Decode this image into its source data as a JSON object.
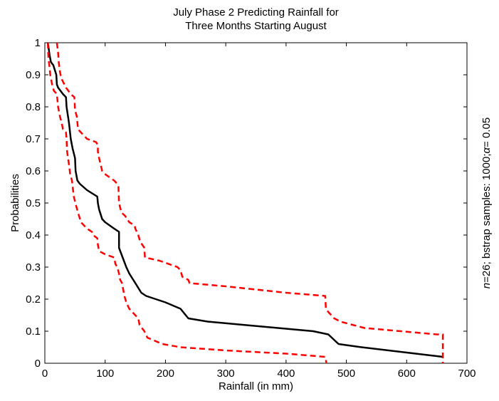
{
  "chart_data": {
    "type": "line",
    "title": [
      "July Phase 2 Predicting Rainfall for",
      "Three Months Starting August"
    ],
    "xlabel": "Rainfall (in mm)",
    "ylabel": "Probabilities",
    "side_note": {
      "n": "n",
      "rest": "=26; bstrap samples: 1000;",
      "alpha": "α",
      "alpha_val": "= 0.05"
    },
    "xlim": [
      0,
      700
    ],
    "ylim": [
      0,
      1
    ],
    "xticks": [
      0,
      100,
      200,
      300,
      400,
      500,
      600,
      700
    ],
    "yticks": [
      0,
      0.1,
      0.2,
      0.3,
      0.4,
      0.5,
      0.6,
      0.7,
      0.8,
      0.9,
      1
    ],
    "ytick_labels": [
      "0",
      "0.1",
      "0.2",
      "0.3",
      "0.4",
      "0.5",
      "0.6",
      "0.7",
      "0.8",
      "0.9",
      "1"
    ],
    "grid": false,
    "legend": "none",
    "series": [
      {
        "role": "estimate",
        "color": "#000000",
        "dash": "solid",
        "points": [
          [
            5,
            1
          ],
          [
            8,
            0.96
          ],
          [
            10,
            0.94
          ],
          [
            14,
            0.93
          ],
          [
            19,
            0.9
          ],
          [
            20,
            0.87
          ],
          [
            22,
            0.86
          ],
          [
            30,
            0.84
          ],
          [
            35,
            0.83
          ],
          [
            36,
            0.8
          ],
          [
            40,
            0.75
          ],
          [
            43,
            0.7
          ],
          [
            46,
            0.67
          ],
          [
            50,
            0.64
          ],
          [
            51,
            0.6
          ],
          [
            54,
            0.57
          ],
          [
            58,
            0.56
          ],
          [
            70,
            0.54
          ],
          [
            87,
            0.52
          ],
          [
            88,
            0.5
          ],
          [
            90,
            0.48
          ],
          [
            95,
            0.45
          ],
          [
            100,
            0.44
          ],
          [
            115,
            0.42
          ],
          [
            123,
            0.41
          ],
          [
            123,
            0.36
          ],
          [
            127,
            0.34
          ],
          [
            135,
            0.3
          ],
          [
            140,
            0.28
          ],
          [
            150,
            0.25
          ],
          [
            160,
            0.22
          ],
          [
            168,
            0.21
          ],
          [
            200,
            0.19
          ],
          [
            225,
            0.17
          ],
          [
            238,
            0.14
          ],
          [
            270,
            0.13
          ],
          [
            445,
            0.1
          ],
          [
            470,
            0.09
          ],
          [
            487,
            0.06
          ],
          [
            525,
            0.05
          ],
          [
            660,
            0.02
          ]
        ]
      },
      {
        "role": "upper bound",
        "color": "#ff0000",
        "dash": "dashed",
        "points": [
          [
            20,
            1
          ],
          [
            22,
            0.97
          ],
          [
            23,
            0.94
          ],
          [
            25,
            0.91
          ],
          [
            27,
            0.89
          ],
          [
            35,
            0.86
          ],
          [
            43,
            0.84
          ],
          [
            49,
            0.83
          ],
          [
            50,
            0.79
          ],
          [
            53,
            0.77
          ],
          [
            55,
            0.73
          ],
          [
            60,
            0.72
          ],
          [
            70,
            0.7
          ],
          [
            85,
            0.69
          ],
          [
            88,
            0.68
          ],
          [
            88,
            0.66
          ],
          [
            90,
            0.64
          ],
          [
            95,
            0.6
          ],
          [
            100,
            0.59
          ],
          [
            115,
            0.57
          ],
          [
            120,
            0.56
          ],
          [
            122,
            0.55
          ],
          [
            123,
            0.5
          ],
          [
            127,
            0.47
          ],
          [
            133,
            0.46
          ],
          [
            140,
            0.44
          ],
          [
            149,
            0.43
          ],
          [
            150,
            0.42
          ],
          [
            155,
            0.4
          ],
          [
            158,
            0.38
          ],
          [
            165,
            0.36
          ],
          [
            166,
            0.33
          ],
          [
            190,
            0.32
          ],
          [
            220,
            0.3
          ],
          [
            225,
            0.29
          ],
          [
            228,
            0.27
          ],
          [
            238,
            0.26
          ],
          [
            240,
            0.25
          ],
          [
            300,
            0.24
          ],
          [
            400,
            0.22
          ],
          [
            465,
            0.21
          ],
          [
            466,
            0.17
          ],
          [
            470,
            0.16
          ],
          [
            480,
            0.14
          ],
          [
            490,
            0.13
          ],
          [
            530,
            0.11
          ],
          [
            650,
            0.09
          ],
          [
            660,
            0.09
          ],
          [
            660,
            0
          ]
        ]
      },
      {
        "role": "lower bound",
        "color": "#ff0000",
        "dash": "dashed",
        "points": [
          [
            5,
            1
          ],
          [
            6,
            0.95
          ],
          [
            8,
            0.92
          ],
          [
            9,
            0.9
          ],
          [
            12,
            0.87
          ],
          [
            15,
            0.85
          ],
          [
            20,
            0.84
          ],
          [
            22,
            0.8
          ],
          [
            25,
            0.77
          ],
          [
            28,
            0.75
          ],
          [
            30,
            0.73
          ],
          [
            35,
            0.72
          ],
          [
            36,
            0.7
          ],
          [
            37,
            0.66
          ],
          [
            40,
            0.62
          ],
          [
            42,
            0.59
          ],
          [
            45,
            0.57
          ],
          [
            48,
            0.52
          ],
          [
            52,
            0.49
          ],
          [
            55,
            0.47
          ],
          [
            60,
            0.44
          ],
          [
            70,
            0.42
          ],
          [
            78,
            0.41
          ],
          [
            80,
            0.4
          ],
          [
            87,
            0.39
          ],
          [
            88,
            0.37
          ],
          [
            90,
            0.35
          ],
          [
            100,
            0.34
          ],
          [
            115,
            0.33
          ],
          [
            117,
            0.31
          ],
          [
            120,
            0.3
          ],
          [
            123,
            0.28
          ],
          [
            125,
            0.26
          ],
          [
            128,
            0.25
          ],
          [
            130,
            0.23
          ],
          [
            132,
            0.21
          ],
          [
            135,
            0.19
          ],
          [
            140,
            0.17
          ],
          [
            145,
            0.16
          ],
          [
            155,
            0.14
          ],
          [
            157,
            0.12
          ],
          [
            165,
            0.1
          ],
          [
            170,
            0.08
          ],
          [
            195,
            0.06
          ],
          [
            225,
            0.05
          ],
          [
            300,
            0.04
          ],
          [
            400,
            0.03
          ],
          [
            465,
            0.02
          ],
          [
            467,
            0
          ]
        ]
      }
    ]
  }
}
